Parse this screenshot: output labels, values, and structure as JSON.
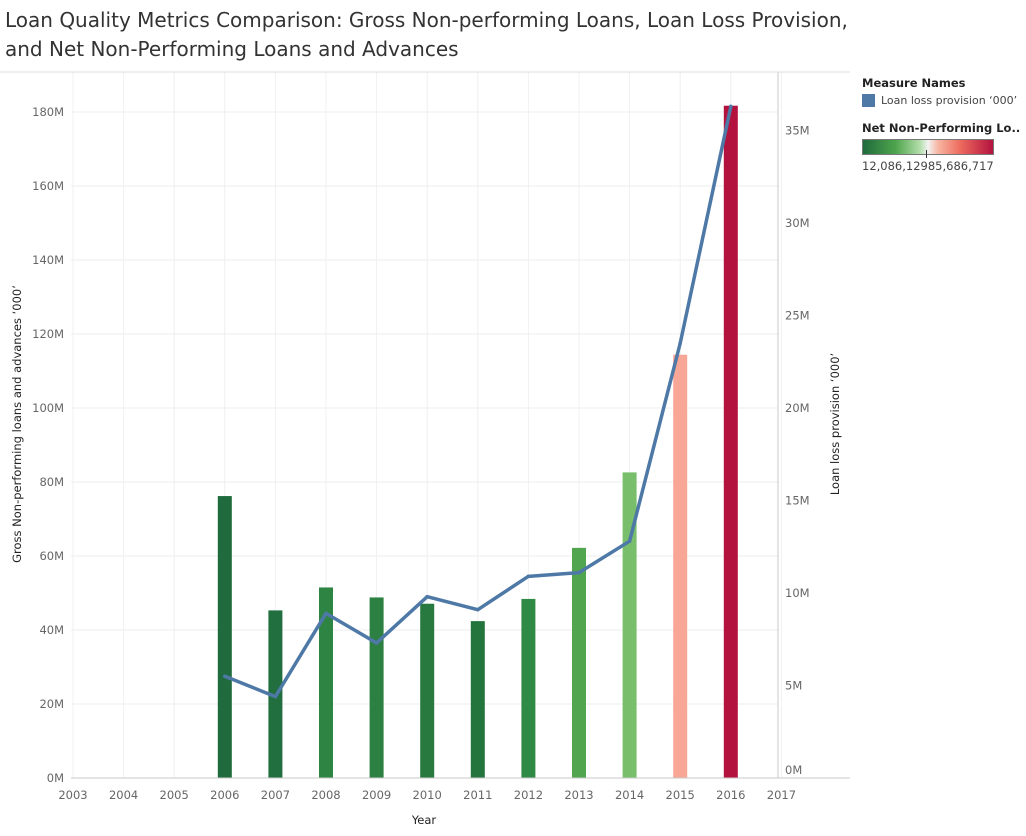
{
  "title": "Loan Quality Metrics Comparison: Gross Non-performing Loans, Loan Loss Provision, and Net Non-Performing Loans and Advances",
  "legend": {
    "measure_names_title": "Measure Names",
    "measure_item": "Loan loss provision ‘000’",
    "measure_color": "#4e79a7",
    "color_title": "Net Non-Performing Lo..",
    "color_min_label": "12,086,129",
    "color_max_label": "85,686,717"
  },
  "chart_data": {
    "type": "bar",
    "xlabel": "Year",
    "ylabel_left": "Gross Non-performing loans and advances ‘000’",
    "ylabel_right": "Loan loss provision ‘000’",
    "x_ticks": [
      "2003",
      "2004",
      "2005",
      "2006",
      "2007",
      "2008",
      "2009",
      "2010",
      "2011",
      "2012",
      "2013",
      "2014",
      "2015",
      "2016",
      "2017"
    ],
    "left_ticks": [
      "0M",
      "20M",
      "40M",
      "60M",
      "80M",
      "100M",
      "120M",
      "140M",
      "160M",
      "180M"
    ],
    "right_ticks": [
      "0M",
      "5M",
      "10M",
      "15M",
      "20M",
      "25M",
      "30M",
      "35M"
    ],
    "left_ylim": [
      0,
      180000000
    ],
    "right_ylim": [
      0,
      35000000
    ],
    "xlim": [
      2003,
      2017
    ],
    "bars": {
      "name": "Gross Non-performing loans and advances ‘000’",
      "x": [
        2006,
        2007,
        2008,
        2009,
        2010,
        2011,
        2012,
        2013,
        2014,
        2015,
        2016
      ],
      "values": [
        76200000,
        45300000,
        51500000,
        48800000,
        47100000,
        42400000,
        48400000,
        62200000,
        82600000,
        114400000,
        181700000
      ],
      "colors": [
        "#1f6b3d",
        "#216e3f",
        "#2e8443",
        "#2c8042",
        "#27793f",
        "#24743e",
        "#2f8a45",
        "#52a54f",
        "#79bf6b",
        "#f8a797",
        "#b3123e"
      ]
    },
    "line": {
      "name": "Loan loss provision ‘000’",
      "x": [
        2006,
        2007,
        2008,
        2009,
        2010,
        2011,
        2012,
        2013,
        2014,
        2015,
        2016
      ],
      "values": [
        5500000,
        4400000,
        8900000,
        7300000,
        9800000,
        9100000,
        10900000,
        11100000,
        12800000,
        23500000,
        36300000
      ],
      "color": "#4e79a7"
    },
    "grid": true
  }
}
